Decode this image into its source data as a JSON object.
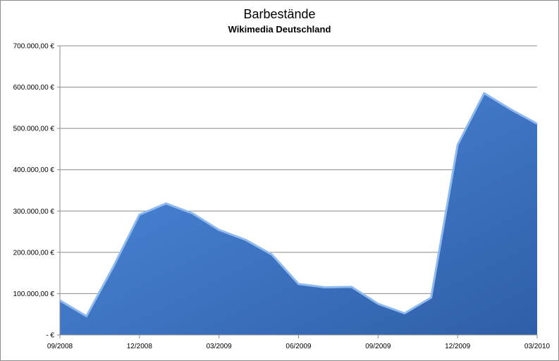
{
  "chart_data": {
    "type": "area",
    "title": "Barbestände",
    "subtitle": "Wikimedia Deutschland",
    "xlabel": "",
    "ylabel": "",
    "x": [
      "09/2008",
      "10/2008",
      "11/2008",
      "12/2008",
      "01/2009",
      "02/2009",
      "03/2009",
      "04/2009",
      "05/2009",
      "06/2009",
      "07/2009",
      "08/2009",
      "09/2009",
      "10/2009",
      "11/2009",
      "12/2009",
      "01/2010",
      "02/2010",
      "03/2010"
    ],
    "x_tick_labels": [
      "09/2008",
      "12/2008",
      "03/2009",
      "06/2009",
      "09/2009",
      "12/2009",
      "03/2010"
    ],
    "x_tick_indices": [
      0,
      3,
      6,
      9,
      12,
      15,
      18
    ],
    "y_tick_labels": [
      "-   €",
      "100.000,00 €",
      "200.000,00 €",
      "300.000,00 €",
      "400.000,00 €",
      "500.000,00 €",
      "600.000,00 €",
      "700.000,00 €"
    ],
    "y_tick_values": [
      0,
      100000,
      200000,
      300000,
      400000,
      500000,
      600000,
      700000
    ],
    "ylim": [
      0,
      700000
    ],
    "grid": true,
    "legend": "none",
    "color": "#3c72c4",
    "series": [
      {
        "values": [
          85000,
          47000,
          165000,
          293000,
          320000,
          296000,
          256000,
          232000,
          196000,
          125000,
          117000,
          118000,
          77000,
          54000,
          92000,
          462000,
          587000,
          548000,
          513000
        ]
      }
    ]
  }
}
